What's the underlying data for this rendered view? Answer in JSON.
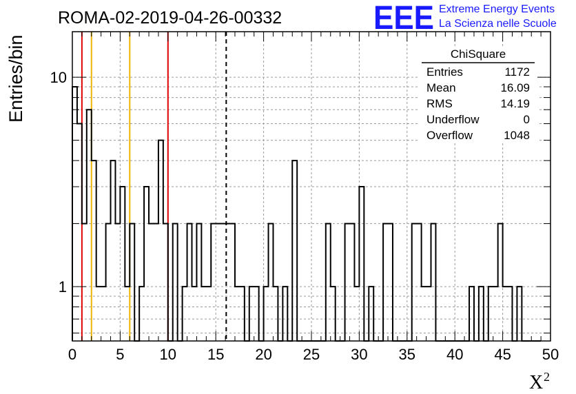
{
  "page": {
    "title": "ROMA-02-2019-04-26-00332"
  },
  "logo": {
    "mark": "EEE",
    "line1": "Extreme Energy Events",
    "line2": "La Scienza nelle Scuole",
    "color": "#1a1aff"
  },
  "stats_box": {
    "title": "ChiSquare",
    "rows": [
      {
        "label": "Entries",
        "value": "1172"
      },
      {
        "label": "Mean",
        "value": "16.09"
      },
      {
        "label": "RMS",
        "value": "14.19"
      },
      {
        "label": "Underflow",
        "value": "0"
      },
      {
        "label": "Overflow",
        "value": "1048"
      }
    ]
  },
  "chart_data": {
    "type": "histogram",
    "title": "ROMA-02-2019-04-26-00332",
    "xlabel_main": "X",
    "xlabel_sup": "2",
    "ylabel": "Entries/bin",
    "xlim": [
      0,
      50
    ],
    "ylim": [
      0.55,
      16.5
    ],
    "y_scale": "log",
    "bin_width": 0.5,
    "x_ticks": [
      0,
      5,
      10,
      15,
      20,
      25,
      30,
      35,
      40,
      45,
      50
    ],
    "y_ticks": [
      1,
      10
    ],
    "grid": true,
    "counts": [
      9,
      6,
      2,
      7,
      4,
      1,
      1,
      2,
      4,
      2,
      3,
      1,
      2,
      0,
      1,
      3,
      2,
      2,
      5,
      2,
      0,
      2,
      0,
      1,
      2,
      1,
      2,
      1,
      1,
      2,
      2,
      2,
      2,
      2,
      1,
      1,
      0,
      1,
      1,
      0,
      1,
      2,
      1,
      0,
      1,
      0,
      4,
      0,
      0,
      0,
      0,
      0,
      0,
      2,
      1,
      0,
      0,
      2,
      2,
      1,
      3,
      0,
      1,
      0,
      0,
      2,
      2,
      0,
      0,
      0,
      0,
      2,
      2,
      1,
      1,
      2,
      0,
      0,
      0,
      0,
      0,
      0,
      0,
      1,
      0,
      1,
      0,
      1,
      1,
      2,
      1,
      1,
      0,
      1,
      0,
      0,
      0,
      0
    ],
    "vertical_lines": [
      {
        "x": 1.0,
        "color": "#dd0000",
        "style": "solid"
      },
      {
        "x": 2.0,
        "color": "#f0b400",
        "style": "solid"
      },
      {
        "x": 6.0,
        "color": "#f0b400",
        "style": "solid"
      },
      {
        "x": 10.0,
        "color": "#dd0000",
        "style": "solid"
      },
      {
        "x": 16.09,
        "color": "#000000",
        "style": "dashed"
      }
    ],
    "line_color": "#000000"
  }
}
